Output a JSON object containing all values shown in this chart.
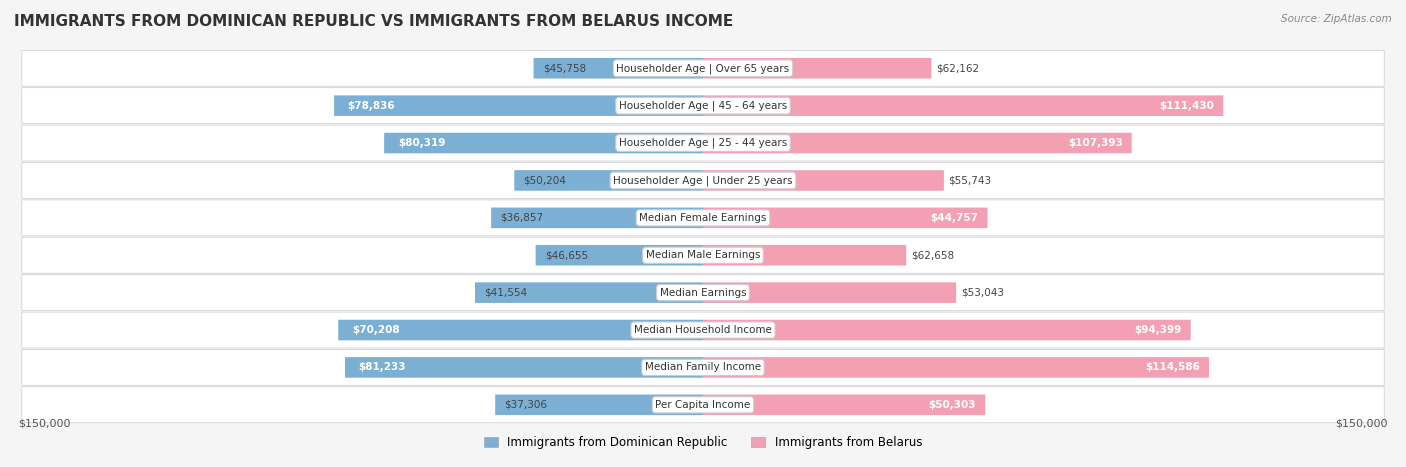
{
  "title": "IMMIGRANTS FROM DOMINICAN REPUBLIC VS IMMIGRANTS FROM BELARUS INCOME",
  "source": "Source: ZipAtlas.com",
  "categories": [
    "Per Capita Income",
    "Median Family Income",
    "Median Household Income",
    "Median Earnings",
    "Median Male Earnings",
    "Median Female Earnings",
    "Householder Age | Under 25 years",
    "Householder Age | 25 - 44 years",
    "Householder Age | 45 - 64 years",
    "Householder Age | Over 65 years"
  ],
  "dominican": [
    37306,
    81233,
    70208,
    41554,
    46655,
    36857,
    50204,
    80319,
    78836,
    45758
  ],
  "belarus": [
    50303,
    114586,
    94399,
    53043,
    62658,
    44757,
    55743,
    107393,
    111430,
    62162
  ],
  "dominican_labels": [
    "$37,306",
    "$81,233",
    "$70,208",
    "$41,554",
    "$46,655",
    "$36,857",
    "$50,204",
    "$80,319",
    "$78,836",
    "$45,758"
  ],
  "belarus_labels": [
    "$50,303",
    "$114,586",
    "$94,399",
    "$53,043",
    "$62,658",
    "$44,757",
    "$55,743",
    "$107,393",
    "$111,430",
    "$62,162"
  ],
  "max_val": 150000,
  "color_dominican": "#7BAFD4",
  "color_dominican_dark": "#5B8DB8",
  "color_belarus": "#F4A0B4",
  "color_belarus_dark": "#E8708A",
  "bg_color": "#f5f5f5",
  "row_bg": "#ffffff",
  "legend_label_dominican": "Immigrants from Dominican Republic",
  "legend_label_belarus": "Immigrants from Belarus",
  "xlabel_left": "$150,000",
  "xlabel_right": "$150,000"
}
